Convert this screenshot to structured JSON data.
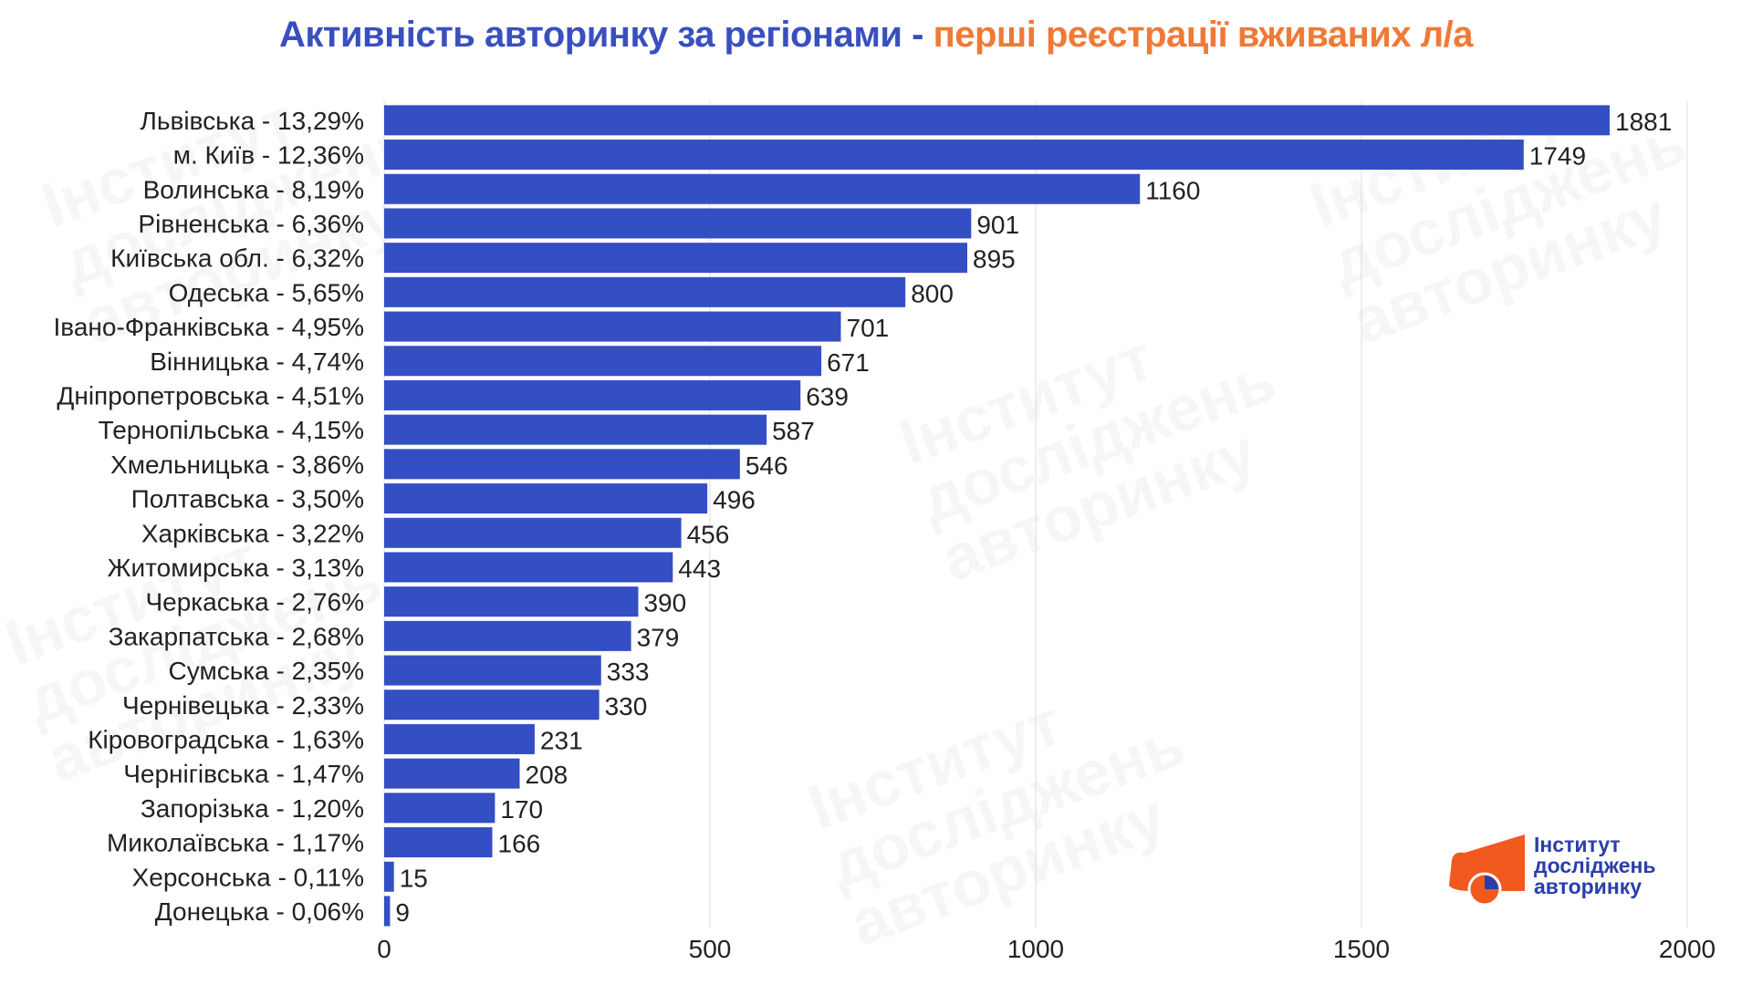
{
  "title": {
    "part1": "Активність авторинку за регіонами - ",
    "part2": "перші реєстрації вживаних л/а"
  },
  "colors": {
    "bar": "#344ec4",
    "title_blue": "#3a4fbf",
    "title_orange": "#f07936",
    "logo_orange": "#f2591f",
    "logo_blue": "#2a3eab"
  },
  "logo": {
    "line1": "Інститут",
    "line2": "досліджень",
    "line3": "авторинку"
  },
  "chart_data": {
    "type": "bar",
    "orientation": "horizontal",
    "title": "Активність авторинку за регіонами - перші реєстрації вживаних л/а",
    "categories": [
      "Львівська - 13,29%",
      "м. Київ - 12,36%",
      "Волинська - 8,19%",
      "Рівненська - 6,36%",
      "Київська обл. - 6,32%",
      "Одеська - 5,65%",
      "Івано-Франківська - 4,95%",
      "Вінницька - 4,74%",
      "Дніпропетровська - 4,51%",
      "Тернопільська - 4,15%",
      "Хмельницька - 3,86%",
      "Полтавська - 3,50%",
      "Харківська - 3,22%",
      "Житомирська - 3,13%",
      "Черкаська - 2,76%",
      "Закарпатська - 2,68%",
      "Сумська - 2,35%",
      "Чернівецька - 2,33%",
      "Кіровоградська - 1,63%",
      "Чернігівська - 1,47%",
      "Запорізька - 1,20%",
      "Миколаївська - 1,17%",
      "Херсонська - 0,11%",
      "Донецька - 0,06%"
    ],
    "values": [
      1881,
      1749,
      1160,
      901,
      895,
      800,
      701,
      671,
      639,
      587,
      546,
      496,
      456,
      443,
      390,
      379,
      333,
      330,
      231,
      208,
      170,
      166,
      15,
      9
    ],
    "xlim": [
      0,
      2000
    ],
    "xticks": [
      "0",
      "500",
      "1000",
      "1500",
      "2000"
    ],
    "grid": true,
    "data_labels": true
  }
}
